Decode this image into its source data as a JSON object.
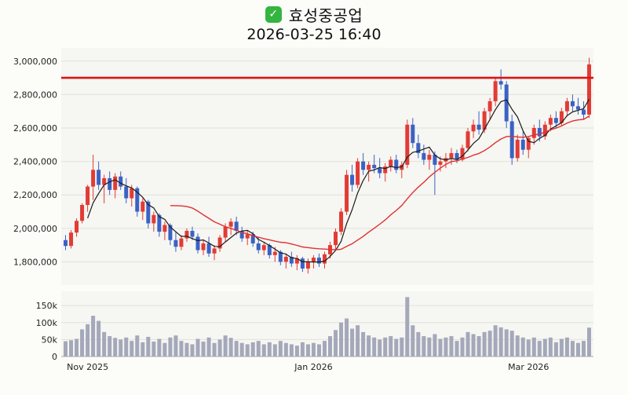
{
  "page": {
    "background": "#fcfcf9"
  },
  "header": {
    "checkbox_icon": "✓",
    "title": "효성중공업",
    "subtitle": "2026-03-25 16:40"
  },
  "chart_data": {
    "type": "candlestick",
    "title": "효성중공업",
    "timestamp": "2026-03-25 16:40",
    "legend_position": "none",
    "grid": true,
    "price_axis": {
      "min": 1680000,
      "max": 3060000,
      "ticks": [
        1800000,
        2000000,
        2200000,
        2400000,
        2600000,
        2800000,
        3000000
      ],
      "labels": [
        "1,800,000",
        "2,000,000",
        "2,200,000",
        "2,400,000",
        "2,600,000",
        "2,800,000",
        "3,000,000"
      ]
    },
    "volume_axis": {
      "max": 185000,
      "ticks": [
        0,
        50000,
        100000,
        150000
      ],
      "labels": [
        "0",
        "50k",
        "100k",
        "150k"
      ]
    },
    "x_ticks": [
      {
        "index": 4,
        "label": "Nov 2025"
      },
      {
        "index": 45,
        "label": "Jan 2026"
      },
      {
        "index": 84,
        "label": "Mar 2026"
      }
    ],
    "alert_line": {
      "price": 2900000,
      "color": "#e01212"
    },
    "moving_averages": [
      {
        "name": "ma-fast",
        "window": 5,
        "color": "#1a1a1a",
        "width": 1.2
      },
      {
        "name": "ma-slow",
        "window": 20,
        "color": "#e03030",
        "width": 1.4
      }
    ],
    "colors": {
      "up": "#e23b35",
      "down": "#3a62c4",
      "volume": "#a4a8ba",
      "grid": "#e2e2da",
      "panel": "#f6f6f2",
      "axis_text": "#222222",
      "baseline": "#aaaaaa"
    },
    "candles": [
      [
        1930000,
        1960000,
        1870000,
        1895000,
        45000
      ],
      [
        1895000,
        1990000,
        1880000,
        1975000,
        48000
      ],
      [
        1975000,
        2060000,
        1950000,
        2045000,
        52000
      ],
      [
        2045000,
        2150000,
        2030000,
        2140000,
        80000
      ],
      [
        2140000,
        2260000,
        2100000,
        2250000,
        95000
      ],
      [
        2250000,
        2440000,
        2170000,
        2350000,
        120000
      ],
      [
        2350000,
        2400000,
        2230000,
        2260000,
        105000
      ],
      [
        2260000,
        2320000,
        2150000,
        2300000,
        72000
      ],
      [
        2300000,
        2340000,
        2200000,
        2230000,
        60000
      ],
      [
        2230000,
        2330000,
        2180000,
        2310000,
        55000
      ],
      [
        2310000,
        2340000,
        2230000,
        2250000,
        50000
      ],
      [
        2250000,
        2300000,
        2150000,
        2180000,
        56000
      ],
      [
        2180000,
        2260000,
        2130000,
        2240000,
        46000
      ],
      [
        2240000,
        2250000,
        2070000,
        2100000,
        62000
      ],
      [
        2100000,
        2180000,
        2050000,
        2160000,
        42000
      ],
      [
        2160000,
        2170000,
        2000000,
        2030000,
        58000
      ],
      [
        2030000,
        2100000,
        1980000,
        2080000,
        44000
      ],
      [
        2080000,
        2090000,
        1950000,
        1980000,
        52000
      ],
      [
        1980000,
        2040000,
        1930000,
        2020000,
        40000
      ],
      [
        2020000,
        2030000,
        1900000,
        1930000,
        56000
      ],
      [
        1930000,
        1980000,
        1860000,
        1890000,
        62000
      ],
      [
        1890000,
        1960000,
        1870000,
        1940000,
        46000
      ],
      [
        1940000,
        2000000,
        1920000,
        1985000,
        40000
      ],
      [
        1985000,
        2010000,
        1930000,
        1950000,
        36000
      ],
      [
        1950000,
        1970000,
        1850000,
        1870000,
        52000
      ],
      [
        1870000,
        1930000,
        1840000,
        1910000,
        44000
      ],
      [
        1910000,
        1950000,
        1830000,
        1850000,
        56000
      ],
      [
        1850000,
        1900000,
        1810000,
        1880000,
        40000
      ],
      [
        1880000,
        1960000,
        1860000,
        1945000,
        50000
      ],
      [
        1945000,
        2030000,
        1920000,
        2010000,
        62000
      ],
      [
        2010000,
        2060000,
        1960000,
        2040000,
        55000
      ],
      [
        2040000,
        2070000,
        1960000,
        1985000,
        46000
      ],
      [
        1985000,
        2010000,
        1920000,
        1940000,
        40000
      ],
      [
        1940000,
        1990000,
        1900000,
        1965000,
        36000
      ],
      [
        1965000,
        1980000,
        1890000,
        1910000,
        42000
      ],
      [
        1910000,
        1950000,
        1850000,
        1870000,
        46000
      ],
      [
        1870000,
        1920000,
        1840000,
        1900000,
        36000
      ],
      [
        1900000,
        1910000,
        1820000,
        1840000,
        42000
      ],
      [
        1840000,
        1890000,
        1800000,
        1860000,
        36000
      ],
      [
        1860000,
        1870000,
        1780000,
        1800000,
        46000
      ],
      [
        1800000,
        1850000,
        1760000,
        1830000,
        40000
      ],
      [
        1830000,
        1860000,
        1770000,
        1790000,
        36000
      ],
      [
        1790000,
        1840000,
        1750000,
        1820000,
        32000
      ],
      [
        1820000,
        1830000,
        1740000,
        1760000,
        42000
      ],
      [
        1760000,
        1820000,
        1730000,
        1800000,
        36000
      ],
      [
        1800000,
        1840000,
        1760000,
        1825000,
        40000
      ],
      [
        1825000,
        1850000,
        1770000,
        1790000,
        36000
      ],
      [
        1790000,
        1860000,
        1760000,
        1845000,
        46000
      ],
      [
        1845000,
        1920000,
        1820000,
        1900000,
        60000
      ],
      [
        1900000,
        2000000,
        1870000,
        1980000,
        78000
      ],
      [
        1980000,
        2120000,
        1960000,
        2100000,
        100000
      ],
      [
        2100000,
        2350000,
        2080000,
        2320000,
        112000
      ],
      [
        2320000,
        2380000,
        2220000,
        2260000,
        82000
      ],
      [
        2260000,
        2420000,
        2240000,
        2400000,
        92000
      ],
      [
        2400000,
        2450000,
        2320000,
        2350000,
        72000
      ],
      [
        2350000,
        2400000,
        2280000,
        2380000,
        62000
      ],
      [
        2380000,
        2440000,
        2330000,
        2360000,
        56000
      ],
      [
        2360000,
        2420000,
        2300000,
        2330000,
        50000
      ],
      [
        2330000,
        2390000,
        2280000,
        2370000,
        56000
      ],
      [
        2370000,
        2430000,
        2340000,
        2410000,
        60000
      ],
      [
        2410000,
        2440000,
        2330000,
        2350000,
        52000
      ],
      [
        2350000,
        2400000,
        2300000,
        2380000,
        56000
      ],
      [
        2380000,
        2650000,
        2360000,
        2620000,
        175000
      ],
      [
        2620000,
        2660000,
        2480000,
        2510000,
        92000
      ],
      [
        2510000,
        2560000,
        2420000,
        2450000,
        72000
      ],
      [
        2450000,
        2500000,
        2380000,
        2410000,
        60000
      ],
      [
        2410000,
        2470000,
        2350000,
        2440000,
        56000
      ],
      [
        2440000,
        2460000,
        2200000,
        2380000,
        66000
      ],
      [
        2380000,
        2430000,
        2340000,
        2400000,
        52000
      ],
      [
        2400000,
        2450000,
        2360000,
        2420000,
        56000
      ],
      [
        2420000,
        2480000,
        2380000,
        2450000,
        60000
      ],
      [
        2450000,
        2470000,
        2390000,
        2410000,
        46000
      ],
      [
        2410000,
        2500000,
        2400000,
        2480000,
        56000
      ],
      [
        2480000,
        2600000,
        2460000,
        2580000,
        72000
      ],
      [
        2580000,
        2650000,
        2540000,
        2620000,
        66000
      ],
      [
        2620000,
        2700000,
        2560000,
        2590000,
        60000
      ],
      [
        2590000,
        2720000,
        2570000,
        2700000,
        72000
      ],
      [
        2700000,
        2780000,
        2650000,
        2760000,
        76000
      ],
      [
        2760000,
        2900000,
        2730000,
        2880000,
        92000
      ],
      [
        2880000,
        2950000,
        2830000,
        2860000,
        86000
      ],
      [
        2860000,
        2880000,
        2600000,
        2640000,
        80000
      ],
      [
        2640000,
        2680000,
        2380000,
        2420000,
        76000
      ],
      [
        2420000,
        2560000,
        2400000,
        2530000,
        62000
      ],
      [
        2530000,
        2580000,
        2440000,
        2470000,
        56000
      ],
      [
        2470000,
        2550000,
        2420000,
        2540000,
        50000
      ],
      [
        2540000,
        2620000,
        2500000,
        2600000,
        56000
      ],
      [
        2600000,
        2650000,
        2520000,
        2550000,
        46000
      ],
      [
        2550000,
        2640000,
        2530000,
        2620000,
        52000
      ],
      [
        2620000,
        2680000,
        2580000,
        2660000,
        56000
      ],
      [
        2660000,
        2700000,
        2600000,
        2630000,
        42000
      ],
      [
        2630000,
        2720000,
        2610000,
        2700000,
        52000
      ],
      [
        2700000,
        2780000,
        2670000,
        2760000,
        56000
      ],
      [
        2760000,
        2800000,
        2700000,
        2730000,
        46000
      ],
      [
        2730000,
        2780000,
        2680000,
        2710000,
        40000
      ],
      [
        2710000,
        2760000,
        2650000,
        2680000,
        46000
      ],
      [
        2680000,
        3020000,
        2660000,
        2980000,
        85000
      ]
    ]
  }
}
